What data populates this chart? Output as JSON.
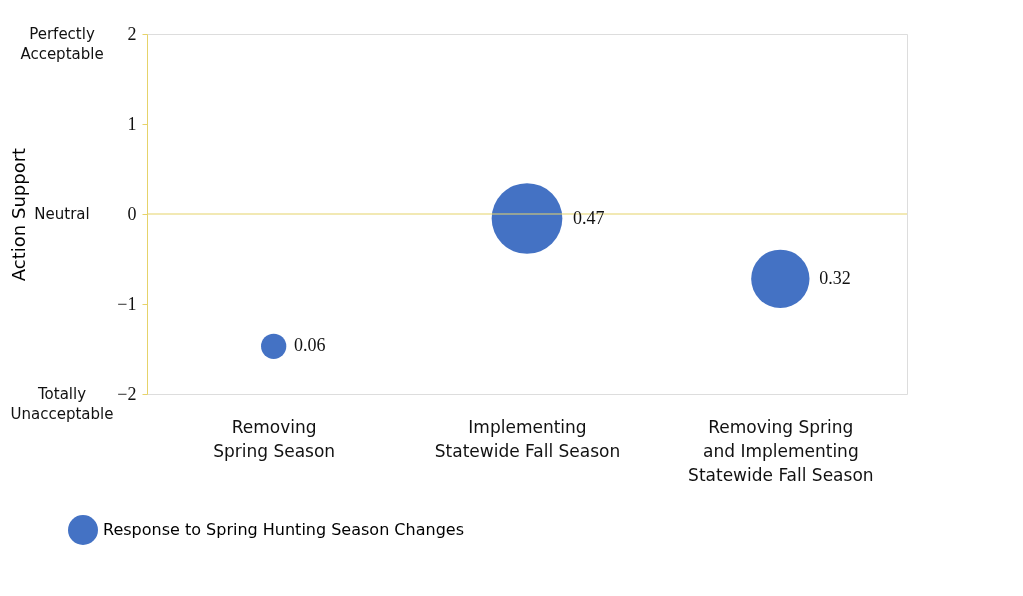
{
  "chart_data": {
    "type": "bubble",
    "ylabel": "Action Support",
    "categories": [
      "Removing\nSpring Season",
      "Implementing\nStatewide Fall Season",
      "Removing Spring\nand Implementing\nStatewide Fall Season"
    ],
    "series": [
      {
        "name": "Response to Spring Hunting Season Changes",
        "color": "#4472c4",
        "values": [
          -1.47,
          -0.05,
          -0.72
        ],
        "sizes": [
          0.06,
          0.47,
          0.32
        ],
        "value_labels": [
          "0.06",
          "0.47",
          "0.32"
        ]
      }
    ],
    "ylim": [
      -2,
      2
    ],
    "yticks": [
      -2,
      -1,
      0,
      1,
      2
    ],
    "annotations": [
      "Perfectly\nAcceptable",
      "Neutral",
      "Totally\nUnacceptable"
    ],
    "ref_lines": [
      {
        "axis": "y",
        "value": 0,
        "color": "#e6d36a"
      }
    ],
    "grid": false,
    "legend": "bottom"
  }
}
